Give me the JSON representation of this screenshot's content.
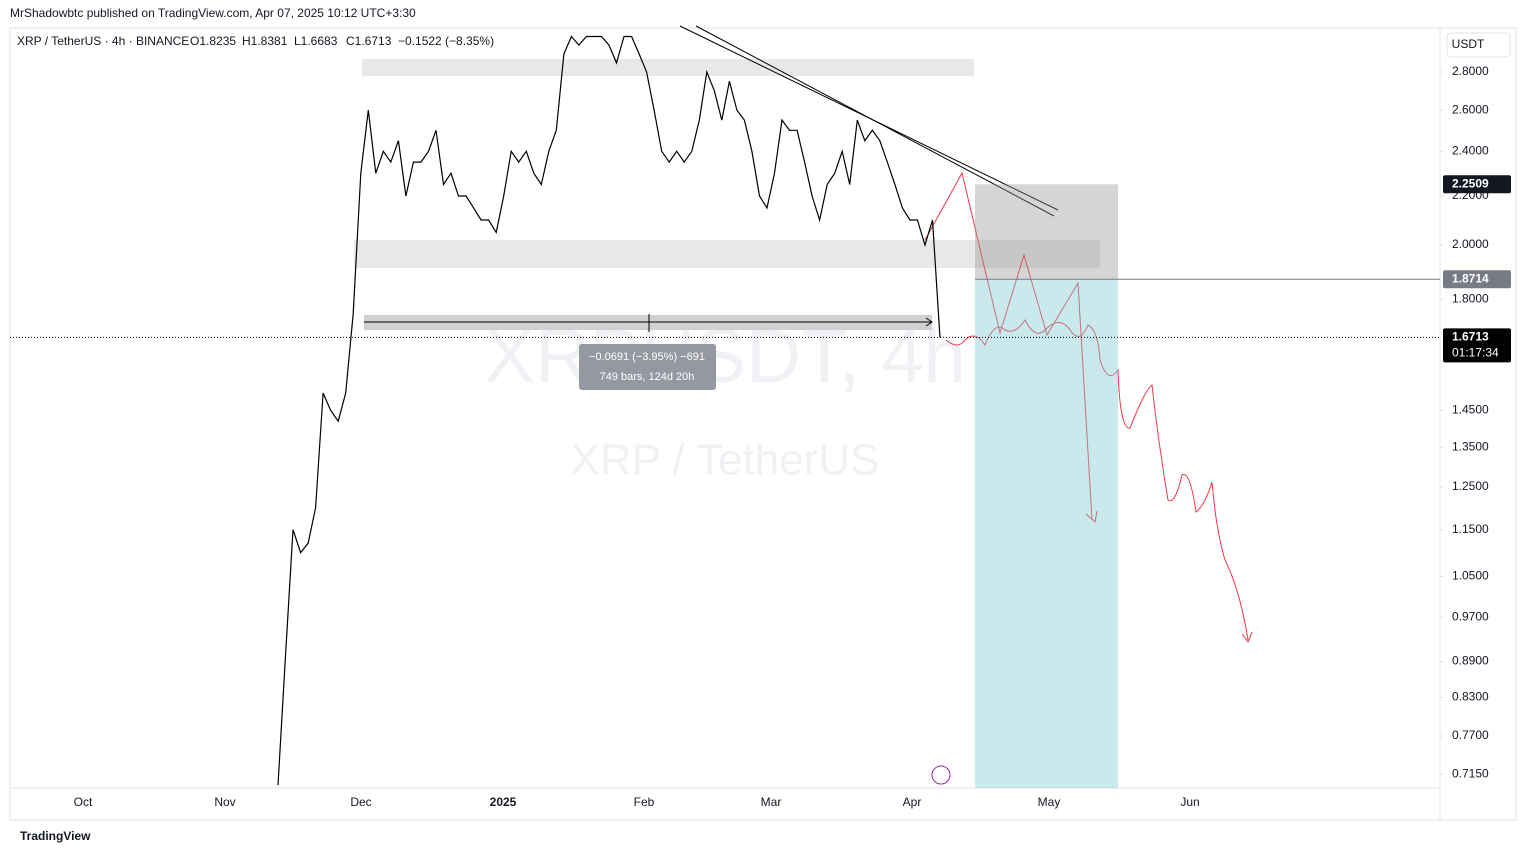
{
  "publisher": "MrShadowbtc published on TradingView.com, Apr 07, 2025 10:12 UTC+3:30",
  "footer": "TradingView",
  "chart_data": {
    "type": "line",
    "symbol": "XRP / TetherUS · 4h · BINANCE",
    "ohlc": [
      "O1.8235",
      "H1.8381",
      "L1.6683",
      "C1.6713",
      "−0.1522 (−8.35%)"
    ],
    "currency": "USDT",
    "watermark": [
      "XRPUSDT, 4h",
      "XRP / TetherUS"
    ],
    "x_labels": [
      "Oct",
      "Nov",
      "Dec",
      "2025",
      "Feb",
      "Mar",
      "Apr",
      "May",
      "Jun"
    ],
    "log_scale": true,
    "color": "#000000",
    "values": [
      0.7,
      0.9,
      1.15,
      1.1,
      1.12,
      1.2,
      1.5,
      1.45,
      1.42,
      1.5,
      1.75,
      2.3,
      2.6,
      2.3,
      2.4,
      2.35,
      2.45,
      2.2,
      2.35,
      2.35,
      2.4,
      2.5,
      2.25,
      2.3,
      2.2,
      2.2,
      2.15,
      2.1,
      2.1,
      2.05,
      2.2,
      2.4,
      2.35,
      2.4,
      2.3,
      2.25,
      2.4,
      2.5,
      2.9,
      3.0,
      2.95,
      3.0,
      3.0,
      3.0,
      2.95,
      2.85,
      3.0,
      3.0,
      2.9,
      2.8,
      2.6,
      2.4,
      2.35,
      2.4,
      2.35,
      2.4,
      2.55,
      2.8,
      2.7,
      2.55,
      2.75,
      2.6,
      2.55,
      2.4,
      2.2,
      2.15,
      2.3,
      2.55,
      2.5,
      2.5,
      2.35,
      2.2,
      2.1,
      2.25,
      2.3,
      2.4,
      2.25,
      2.55,
      2.45,
      2.5,
      2.45,
      2.35,
      2.25,
      2.15,
      2.1,
      2.1,
      2.0,
      2.1,
      1.67
    ],
    "ylim": [
      0.696,
      3.05
    ],
    "yticks": [
      {
        "value": 2.8,
        "label": "2.8000"
      },
      {
        "value": 2.6,
        "label": "2.6000"
      },
      {
        "value": 2.4,
        "label": "2.4000"
      },
      {
        "value": 2.2,
        "label": "2.2000"
      },
      {
        "value": 2.0,
        "label": "2.0000"
      },
      {
        "value": 1.8,
        "label": "1.8000"
      },
      {
        "value": 1.45,
        "label": "1.4500"
      },
      {
        "value": 1.35,
        "label": "1.3500"
      },
      {
        "value": 1.25,
        "label": "1.2500"
      },
      {
        "value": 1.15,
        "label": "1.1500"
      },
      {
        "value": 1.05,
        "label": "1.0500"
      },
      {
        "value": 0.97,
        "label": "0.9700"
      },
      {
        "value": 0.89,
        "label": "0.8900"
      },
      {
        "value": 0.83,
        "label": "0.8300"
      },
      {
        "value": 0.77,
        "label": "0.7700"
      },
      {
        "value": 0.715,
        "label": "0.7150"
      }
    ],
    "price_labels": {
      "stop": 2.2509,
      "entry": 1.8714,
      "last": 1.6713,
      "countdown": "01:17:34"
    },
    "measure": [
      "−0.0691 (−3.95%) −691",
      "749 bars, 124d 20h"
    ]
  }
}
